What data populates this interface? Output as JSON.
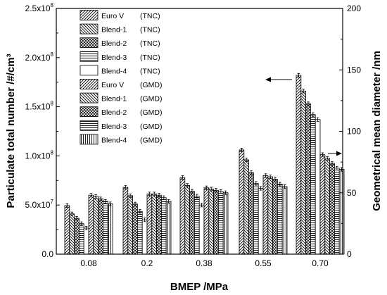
{
  "chart_data": {
    "type": "bar",
    "title": "",
    "xlabel": "BMEP /MPa",
    "ylabel_left": "Particulate total number  /#/cm³",
    "ylabel_right": "Geometrical mean diameter /nm",
    "categories": [
      "0.08",
      "0.2",
      "0.38",
      "0.55",
      "0.70"
    ],
    "ylim_left": [
      0,
      250000000.0
    ],
    "ylim_right": [
      0,
      200
    ],
    "yticks_left": [
      {
        "mantissa": "0.0",
        "exp": ""
      },
      {
        "mantissa": "5.0x10",
        "exp": "7"
      },
      {
        "mantissa": "1.0x10",
        "exp": "8"
      },
      {
        "mantissa": "1.5x10",
        "exp": "8"
      },
      {
        "mantissa": "2.0x10",
        "exp": "8"
      },
      {
        "mantissa": "2.5x10",
        "exp": "8"
      }
    ],
    "yticks_left_values": [
      0,
      50000000.0,
      100000000.0,
      150000000.0,
      200000000.0,
      250000000.0
    ],
    "yticks_right": [
      0,
      50,
      100,
      150,
      200
    ],
    "series": [
      {
        "name": "Euro V",
        "metric": "TNC",
        "axis": "left",
        "pattern": "diag-fwd",
        "values": [
          49500000.0,
          68000000.0,
          78000000.0,
          106000000.0,
          182000000.0
        ]
      },
      {
        "name": "Blend-1",
        "metric": "TNC",
        "axis": "left",
        "pattern": "diag-back",
        "values": [
          41000000.0,
          59500000.0,
          70000000.0,
          96000000.0,
          166000000.0
        ]
      },
      {
        "name": "Blend-2",
        "metric": "TNC",
        "axis": "left",
        "pattern": "cross",
        "values": [
          36500000.0,
          51000000.0,
          64000000.0,
          83000000.0,
          153000000.0
        ]
      },
      {
        "name": "Blend-3",
        "metric": "TNC",
        "axis": "left",
        "pattern": "horiz",
        "values": [
          31000000.0,
          43500000.0,
          59000000.0,
          72000000.0,
          142000000.0
        ]
      },
      {
        "name": "Blend-4",
        "metric": "TNC",
        "axis": "left",
        "pattern": "none",
        "values": [
          26500000.0,
          35000000.0,
          50000000.0,
          67000000.0,
          137000000.0
        ]
      },
      {
        "name": "Euro V",
        "metric": "GMD",
        "axis": "right",
        "pattern": "diag-fwd",
        "values": [
          48,
          49,
          54,
          64,
          81
        ]
      },
      {
        "name": "Blend-1",
        "metric": "GMD",
        "axis": "right",
        "pattern": "diag-back",
        "values": [
          47,
          49,
          53,
          63,
          78
        ]
      },
      {
        "name": "Blend-2",
        "metric": "GMD",
        "axis": "right",
        "pattern": "cross",
        "values": [
          45,
          48,
          52,
          61,
          74
        ]
      },
      {
        "name": "Blend-3",
        "metric": "GMD",
        "axis": "right",
        "pattern": "horiz",
        "values": [
          43,
          46,
          51,
          57,
          70
        ]
      },
      {
        "name": "Blend-4",
        "metric": "GMD",
        "axis": "right",
        "pattern": "vert",
        "values": [
          41,
          43,
          50,
          55,
          69
        ]
      }
    ],
    "legend_placement": "top-left",
    "grid": false
  }
}
